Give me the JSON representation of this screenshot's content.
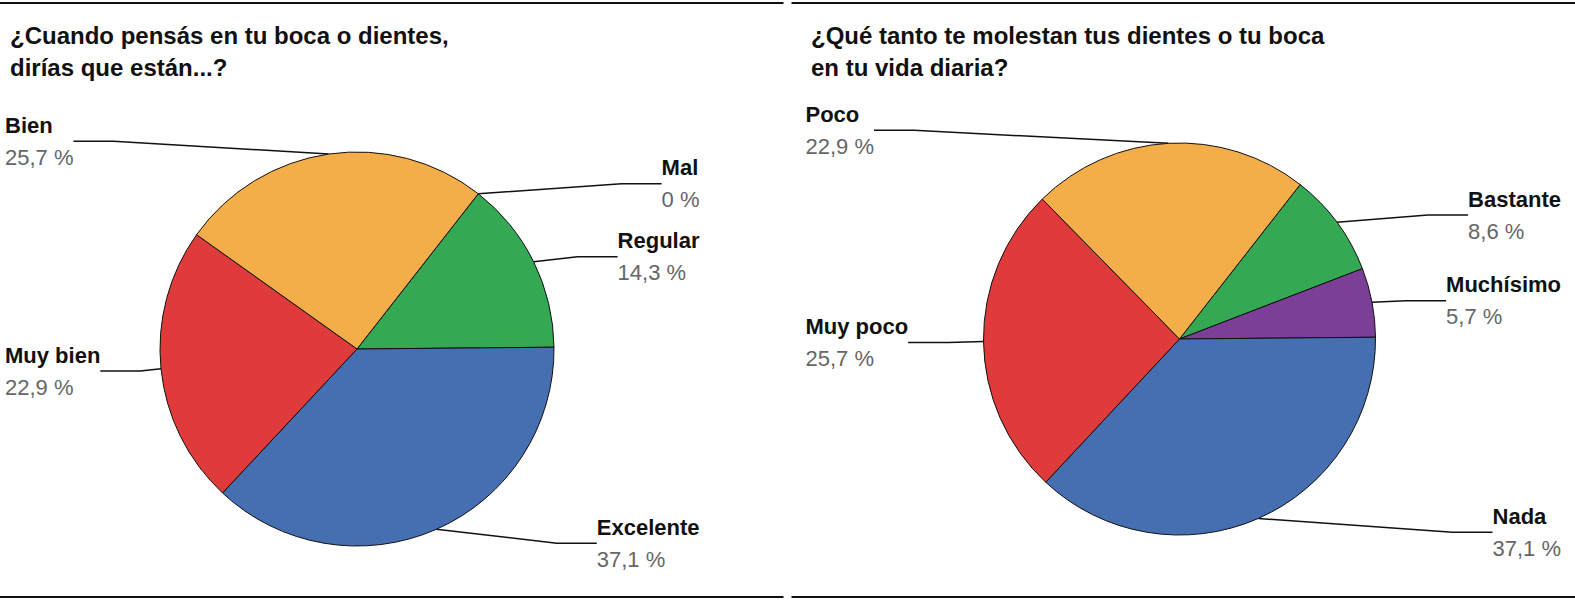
{
  "chart_data": [
    {
      "type": "pie",
      "title": "¿Cuando pensás en tu boca o dientes,\ndirías que están...?",
      "categories": [
        "Mal",
        "Regular",
        "Excelente",
        "Muy bien",
        "Bien"
      ],
      "values": [
        0,
        14.3,
        37.1,
        22.9,
        25.7
      ],
      "value_labels": [
        "0 %",
        "14,3 %",
        "37,1 %",
        "22,9 %",
        "25,7 %"
      ],
      "colors": [
        "#7b3f98",
        "#35a853",
        "#456fb1",
        "#e03b3b",
        "#f3ae4a"
      ],
      "data_labels": true
    },
    {
      "type": "pie",
      "title": "¿Qué tanto te molestan tus dientes o tu boca\nen tu vida diaria?",
      "categories": [
        "Bastante",
        "Muchísimo",
        "Nada",
        "Muy poco",
        "Poco"
      ],
      "values": [
        8.6,
        5.7,
        37.1,
        25.7,
        22.9
      ],
      "value_labels": [
        "8,6 %",
        "5,7 %",
        "37,1 %",
        "25,7 %",
        "22,9 %"
      ],
      "colors": [
        "#35a853",
        "#7b3f98",
        "#456fb1",
        "#e03b3b",
        "#f3ae4a"
      ],
      "data_labels": true
    }
  ]
}
